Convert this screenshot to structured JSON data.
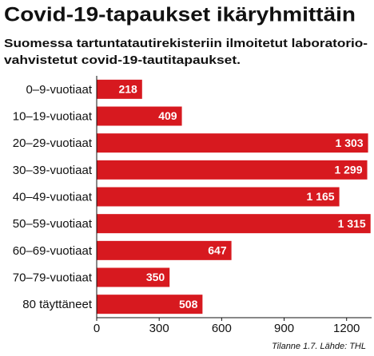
{
  "chart_data": {
    "type": "hbar",
    "title": "Covid-19-tapaukset ikäryhmittäin",
    "subtitle": [
      "Suomessa tartuntatautirekisteriin ilmoitetut laboratorio-",
      "vahvistetut covid-19-tautitapaukset."
    ],
    "categories": [
      "0–9-vuotiaat",
      "10–19-vuotiaat",
      "20–29-vuotiaat",
      "30–39-vuotiaat",
      "40–49-vuotiaat",
      "50–59-vuotiaat",
      "60–69-vuotiaat",
      "70–79-vuotiaat",
      "80 täyttäneet"
    ],
    "values": [
      218,
      409,
      1303,
      1299,
      1165,
      1315,
      647,
      350,
      508
    ],
    "value_labels": [
      "218",
      "409",
      "1 303",
      "1 299",
      "1 165",
      "1 315",
      "647",
      "350",
      "508"
    ],
    "color": "#d7191f",
    "xlim": [
      0,
      1320
    ],
    "xticks": [
      0,
      300,
      600,
      900,
      1200
    ],
    "grid": false,
    "source": "Tilanne 1.7. Lähde: THL"
  }
}
